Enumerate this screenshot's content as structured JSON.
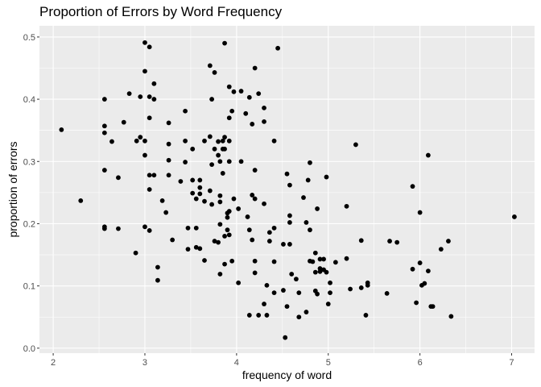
{
  "chart_data": {
    "type": "scatter",
    "title": "Proportion of Errors by Word Frequency",
    "xlabel": "frequency of word",
    "ylabel": "proportion of errors",
    "xlim": [
      1.85,
      7.25
    ],
    "ylim": [
      -0.008,
      0.518
    ],
    "x_ticks": [
      2,
      3,
      4,
      5,
      6,
      7
    ],
    "y_ticks": [
      0.0,
      0.1,
      0.2,
      0.3,
      0.4,
      0.5
    ],
    "y_tick_labels": [
      "0.0",
      "0.1",
      "0.2",
      "0.3",
      "0.4",
      "0.5"
    ],
    "grid": true,
    "colors": {
      "panel": "#ebebeb",
      "grid_major": "#ffffff",
      "point": "#000000",
      "tick": "#4d4d4d"
    },
    "points": [
      [
        2.09,
        0.351
      ],
      [
        2.3,
        0.237
      ],
      [
        2.56,
        0.4
      ],
      [
        2.56,
        0.357
      ],
      [
        2.56,
        0.346
      ],
      [
        2.56,
        0.286
      ],
      [
        2.56,
        0.195
      ],
      [
        2.56,
        0.192
      ],
      [
        2.64,
        0.332
      ],
      [
        2.71,
        0.274
      ],
      [
        2.71,
        0.192
      ],
      [
        2.77,
        0.363
      ],
      [
        2.83,
        0.409
      ],
      [
        2.91,
        0.333
      ],
      [
        2.9,
        0.153
      ],
      [
        2.95,
        0.404
      ],
      [
        2.95,
        0.339
      ],
      [
        3.0,
        0.491
      ],
      [
        3.0,
        0.445
      ],
      [
        3.0,
        0.333
      ],
      [
        3.0,
        0.31
      ],
      [
        3.0,
        0.195
      ],
      [
        3.05,
        0.484
      ],
      [
        3.05,
        0.404
      ],
      [
        3.05,
        0.37
      ],
      [
        3.05,
        0.278
      ],
      [
        3.05,
        0.255
      ],
      [
        3.05,
        0.189
      ],
      [
        3.1,
        0.425
      ],
      [
        3.1,
        0.4
      ],
      [
        3.1,
        0.278
      ],
      [
        3.14,
        0.13
      ],
      [
        3.14,
        0.109
      ],
      [
        3.19,
        0.237
      ],
      [
        3.23,
        0.218
      ],
      [
        3.26,
        0.362
      ],
      [
        3.26,
        0.328
      ],
      [
        3.26,
        0.302
      ],
      [
        3.26,
        0.278
      ],
      [
        3.3,
        0.174
      ],
      [
        3.39,
        0.268
      ],
      [
        3.44,
        0.381
      ],
      [
        3.44,
        0.333
      ],
      [
        3.44,
        0.299
      ],
      [
        3.47,
        0.193
      ],
      [
        3.47,
        0.159
      ],
      [
        3.52,
        0.32
      ],
      [
        3.52,
        0.27
      ],
      [
        3.52,
        0.249
      ],
      [
        3.56,
        0.193
      ],
      [
        3.56,
        0.24
      ],
      [
        3.56,
        0.162
      ],
      [
        3.6,
        0.258
      ],
      [
        3.6,
        0.27
      ],
      [
        3.6,
        0.16
      ],
      [
        3.6,
        0.248
      ],
      [
        3.65,
        0.333
      ],
      [
        3.65,
        0.236
      ],
      [
        3.65,
        0.141
      ],
      [
        3.71,
        0.454
      ],
      [
        3.71,
        0.34
      ],
      [
        3.71,
        0.253
      ],
      [
        3.73,
        0.4
      ],
      [
        3.73,
        0.295
      ],
      [
        3.73,
        0.231
      ],
      [
        3.76,
        0.443
      ],
      [
        3.76,
        0.32
      ],
      [
        3.76,
        0.172
      ],
      [
        3.8,
        0.332
      ],
      [
        3.8,
        0.31
      ],
      [
        3.8,
        0.17
      ],
      [
        3.82,
        0.3
      ],
      [
        3.82,
        0.245
      ],
      [
        3.82,
        0.235
      ],
      [
        3.82,
        0.199
      ],
      [
        3.82,
        0.119
      ],
      [
        3.85,
        0.333
      ],
      [
        3.85,
        0.32
      ],
      [
        3.85,
        0.281
      ],
      [
        3.87,
        0.49
      ],
      [
        3.87,
        0.339
      ],
      [
        3.87,
        0.32
      ],
      [
        3.87,
        0.135
      ],
      [
        3.87,
        0.18
      ],
      [
        3.9,
        0.217
      ],
      [
        3.9,
        0.21
      ],
      [
        3.9,
        0.19
      ],
      [
        3.92,
        0.42
      ],
      [
        3.92,
        0.37
      ],
      [
        3.92,
        0.333
      ],
      [
        3.92,
        0.3
      ],
      [
        3.92,
        0.22
      ],
      [
        3.92,
        0.182
      ],
      [
        3.95,
        0.381
      ],
      [
        3.95,
        0.14
      ],
      [
        3.97,
        0.412
      ],
      [
        3.97,
        0.24
      ],
      [
        4.02,
        0.105
      ],
      [
        4.02,
        0.224
      ],
      [
        4.05,
        0.413
      ],
      [
        4.05,
        0.3
      ],
      [
        4.1,
        0.377
      ],
      [
        4.12,
        0.211
      ],
      [
        4.14,
        0.403
      ],
      [
        4.14,
        0.19
      ],
      [
        4.14,
        0.053
      ],
      [
        4.17,
        0.246
      ],
      [
        4.17,
        0.36
      ],
      [
        4.17,
        0.174
      ],
      [
        4.2,
        0.45
      ],
      [
        4.2,
        0.286
      ],
      [
        4.2,
        0.24
      ],
      [
        4.2,
        0.14
      ],
      [
        4.2,
        0.121
      ],
      [
        4.24,
        0.409
      ],
      [
        4.24,
        0.053
      ],
      [
        4.3,
        0.386
      ],
      [
        4.3,
        0.364
      ],
      [
        4.3,
        0.232
      ],
      [
        4.3,
        0.071
      ],
      [
        4.33,
        0.101
      ],
      [
        4.33,
        0.053
      ],
      [
        4.36,
        0.186
      ],
      [
        4.36,
        0.172
      ],
      [
        4.41,
        0.333
      ],
      [
        4.41,
        0.193
      ],
      [
        4.41,
        0.139
      ],
      [
        4.41,
        0.089
      ],
      [
        4.45,
        0.482
      ],
      [
        4.51,
        0.167
      ],
      [
        4.51,
        0.093
      ],
      [
        4.53,
        0.017
      ],
      [
        4.55,
        0.28
      ],
      [
        4.55,
        0.067
      ],
      [
        4.58,
        0.262
      ],
      [
        4.58,
        0.213
      ],
      [
        4.58,
        0.167
      ],
      [
        4.58,
        0.202
      ],
      [
        4.6,
        0.119
      ],
      [
        4.65,
        0.111
      ],
      [
        4.68,
        0.089
      ],
      [
        4.68,
        0.05
      ],
      [
        4.73,
        0.242
      ],
      [
        4.76,
        0.202
      ],
      [
        4.76,
        0.058
      ],
      [
        4.78,
        0.27
      ],
      [
        4.8,
        0.298
      ],
      [
        4.8,
        0.19
      ],
      [
        4.8,
        0.14
      ],
      [
        4.83,
        0.139
      ],
      [
        4.86,
        0.153
      ],
      [
        4.86,
        0.122
      ],
      [
        4.86,
        0.092
      ],
      [
        4.88,
        0.224
      ],
      [
        4.88,
        0.087
      ],
      [
        4.91,
        0.143
      ],
      [
        4.91,
        0.128
      ],
      [
        4.91,
        0.123
      ],
      [
        4.95,
        0.143
      ],
      [
        4.95,
        0.126
      ],
      [
        4.98,
        0.275
      ],
      [
        4.98,
        0.122
      ],
      [
        5.0,
        0.071
      ],
      [
        5.02,
        0.105
      ],
      [
        5.02,
        0.089
      ],
      [
        5.08,
        0.138
      ],
      [
        5.2,
        0.228
      ],
      [
        5.2,
        0.144
      ],
      [
        5.24,
        0.095
      ],
      [
        5.3,
        0.327
      ],
      [
        5.36,
        0.173
      ],
      [
        5.36,
        0.097
      ],
      [
        5.41,
        0.053
      ],
      [
        5.43,
        0.101
      ],
      [
        5.43,
        0.105
      ],
      [
        5.64,
        0.088
      ],
      [
        5.67,
        0.172
      ],
      [
        5.75,
        0.17
      ],
      [
        5.92,
        0.26
      ],
      [
        5.92,
        0.127
      ],
      [
        5.96,
        0.073
      ],
      [
        6.0,
        0.218
      ],
      [
        6.0,
        0.137
      ],
      [
        6.02,
        0.101
      ],
      [
        6.05,
        0.104
      ],
      [
        6.09,
        0.31
      ],
      [
        6.09,
        0.124
      ],
      [
        6.12,
        0.067
      ],
      [
        6.14,
        0.067
      ],
      [
        6.23,
        0.159
      ],
      [
        6.31,
        0.172
      ],
      [
        6.34,
        0.051
      ],
      [
        7.03,
        0.211
      ]
    ]
  }
}
